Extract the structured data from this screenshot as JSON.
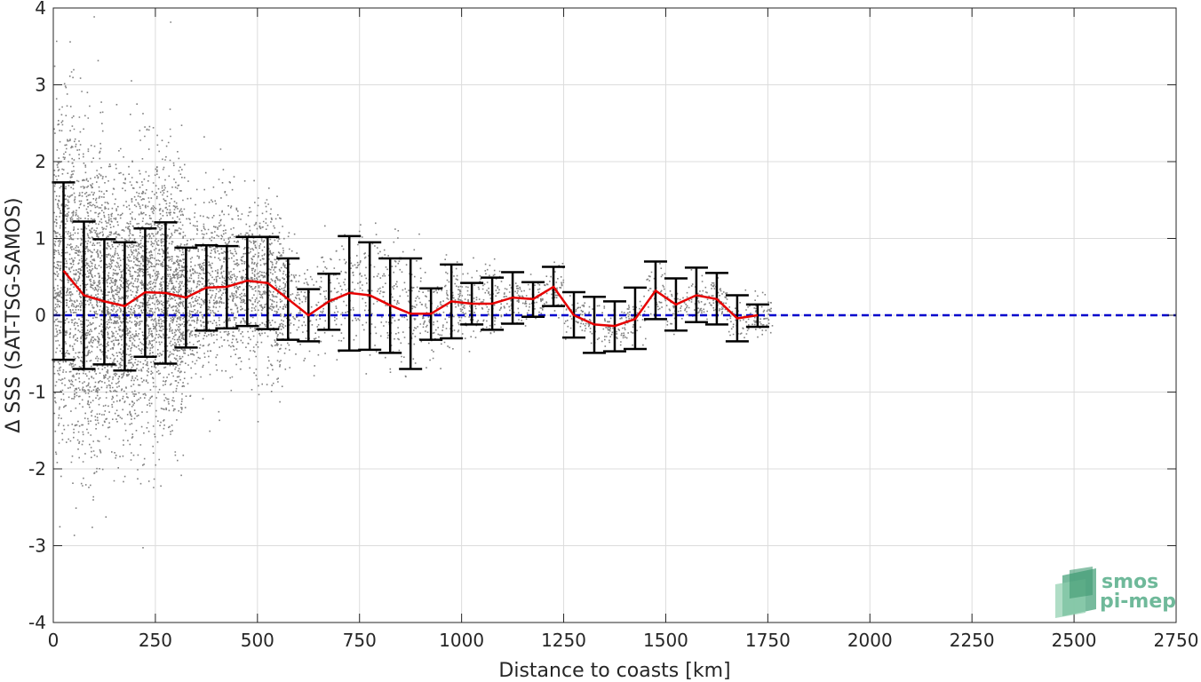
{
  "chart_data": {
    "type": "scatter",
    "xlabel": "Distance to coasts [km]",
    "ylabel": "Δ SSS (SAT-TSG-SAMOS)",
    "xlim": [
      0,
      2750
    ],
    "ylim": [
      -4,
      4
    ],
    "xticks": [
      "0",
      "250",
      "500",
      "750",
      "1000",
      "1250",
      "1500",
      "1750",
      "2000",
      "2250",
      "2500",
      "2750"
    ],
    "yticks": [
      "-4",
      "-3",
      "-2",
      "-1",
      "0",
      "1",
      "2",
      "3",
      "4"
    ],
    "grid": true,
    "zero_line": {
      "y": 0,
      "color": "#0000cc",
      "style": "dashed"
    },
    "scatter_color": "#808080",
    "mean_color": "#e60000",
    "errorbar_color": "#000000",
    "binned_stats": [
      {
        "x": 25,
        "mean": 0.58,
        "low": -0.58,
        "high": 1.73
      },
      {
        "x": 75,
        "mean": 0.26,
        "low": -0.7,
        "high": 1.22
      },
      {
        "x": 125,
        "mean": 0.18,
        "low": -0.64,
        "high": 0.99
      },
      {
        "x": 175,
        "mean": 0.12,
        "low": -0.72,
        "high": 0.95
      },
      {
        "x": 225,
        "mean": 0.3,
        "low": -0.54,
        "high": 1.13
      },
      {
        "x": 275,
        "mean": 0.29,
        "low": -0.63,
        "high": 1.21
      },
      {
        "x": 325,
        "mean": 0.23,
        "low": -0.42,
        "high": 0.88
      },
      {
        "x": 375,
        "mean": 0.36,
        "low": -0.2,
        "high": 0.91
      },
      {
        "x": 425,
        "mean": 0.37,
        "low": -0.17,
        "high": 0.9
      },
      {
        "x": 475,
        "mean": 0.45,
        "low": -0.14,
        "high": 1.02
      },
      {
        "x": 525,
        "mean": 0.42,
        "low": -0.18,
        "high": 1.02
      },
      {
        "x": 575,
        "mean": 0.21,
        "low": -0.32,
        "high": 0.74
      },
      {
        "x": 625,
        "mean": 0.0,
        "low": -0.34,
        "high": 0.34
      },
      {
        "x": 675,
        "mean": 0.18,
        "low": -0.19,
        "high": 0.54
      },
      {
        "x": 725,
        "mean": 0.29,
        "low": -0.46,
        "high": 1.03
      },
      {
        "x": 775,
        "mean": 0.26,
        "low": -0.45,
        "high": 0.95
      },
      {
        "x": 825,
        "mean": 0.13,
        "low": -0.49,
        "high": 0.74
      },
      {
        "x": 875,
        "mean": 0.02,
        "low": -0.7,
        "high": 0.74
      },
      {
        "x": 925,
        "mean": 0.02,
        "low": -0.32,
        "high": 0.35
      },
      {
        "x": 975,
        "mean": 0.18,
        "low": -0.3,
        "high": 0.66
      },
      {
        "x": 1025,
        "mean": 0.15,
        "low": -0.12,
        "high": 0.42
      },
      {
        "x": 1075,
        "mean": 0.15,
        "low": -0.19,
        "high": 0.49
      },
      {
        "x": 1125,
        "mean": 0.23,
        "low": -0.11,
        "high": 0.56
      },
      {
        "x": 1175,
        "mean": 0.21,
        "low": -0.02,
        "high": 0.43
      },
      {
        "x": 1225,
        "mean": 0.37,
        "low": 0.12,
        "high": 0.63
      },
      {
        "x": 1275,
        "mean": 0.0,
        "low": -0.29,
        "high": 0.3
      },
      {
        "x": 1325,
        "mean": -0.12,
        "low": -0.49,
        "high": 0.24
      },
      {
        "x": 1375,
        "mean": -0.14,
        "low": -0.47,
        "high": 0.18
      },
      {
        "x": 1425,
        "mean": -0.05,
        "low": -0.44,
        "high": 0.36
      },
      {
        "x": 1475,
        "mean": 0.32,
        "low": -0.05,
        "high": 0.7
      },
      {
        "x": 1525,
        "mean": 0.14,
        "low": -0.2,
        "high": 0.48
      },
      {
        "x": 1575,
        "mean": 0.26,
        "low": -0.09,
        "high": 0.62
      },
      {
        "x": 1625,
        "mean": 0.21,
        "low": -0.12,
        "high": 0.55
      },
      {
        "x": 1675,
        "mean": -0.04,
        "low": -0.34,
        "high": 0.26
      },
      {
        "x": 1725,
        "mean": 0.0,
        "low": -0.15,
        "high": 0.14
      }
    ]
  },
  "logo": {
    "line1": "smos",
    "line2": "pi-mep"
  }
}
